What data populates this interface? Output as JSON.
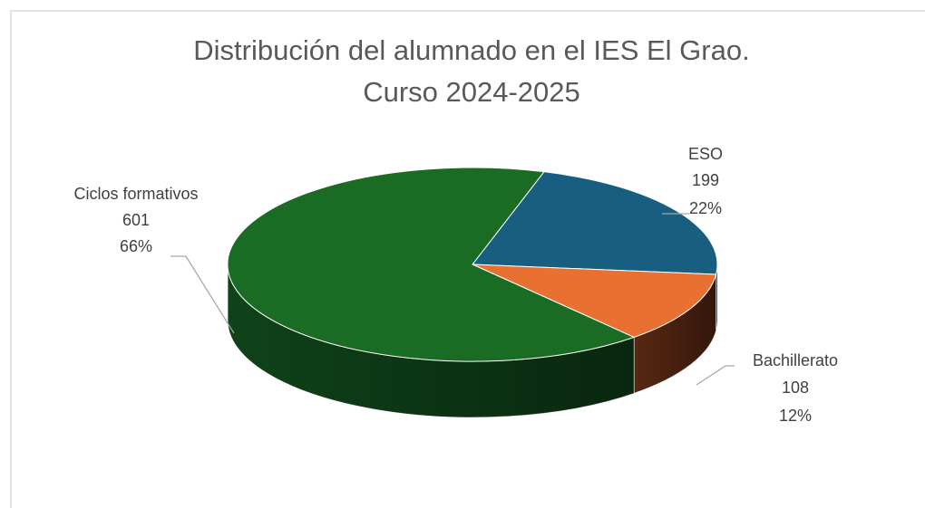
{
  "chart_data": {
    "type": "pie",
    "title": [
      "Distribución del alumnado en el IES El Grao.",
      "Curso 2024-2025"
    ],
    "categories": [
      "ESO",
      "Bachillerato",
      "Ciclos formativos"
    ],
    "values": [
      199,
      108,
      601
    ],
    "percent_labels": [
      "22%",
      "12%",
      "66%"
    ],
    "colors": [
      "#175e80",
      "#e87030",
      "#1a6b23"
    ],
    "side_colors": [
      "#0f4058",
      "#5c2a14",
      "#10461a"
    ]
  }
}
